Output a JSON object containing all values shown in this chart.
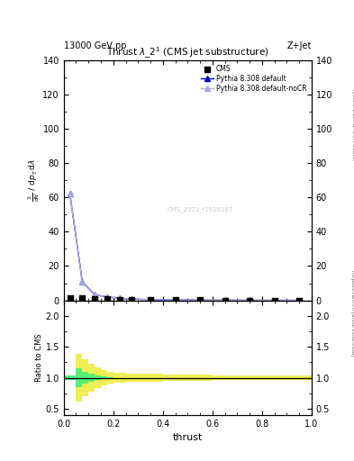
{
  "title": "Thrust $\\lambda\\_2^1$ (CMS jet substructure)",
  "header_left": "13000 GeV pp",
  "header_right": "Z+Jet",
  "right_label_top": "Rivet 3.1.10, $\\geq$ 3.3M events",
  "right_label_bot": "mcplots.cern.ch [arXiv:1306.3436]",
  "watermark": "CMS_2021_I1920187",
  "xlabel": "thrust",
  "ylabel_main_line1": "mathrm d$^2$N",
  "ylabel_ratio": "Ratio to CMS",
  "ylim_main": [
    0,
    140
  ],
  "ylim_ratio": [
    0.4,
    2.25
  ],
  "yticks_main": [
    0,
    20,
    40,
    60,
    80,
    100,
    120,
    140
  ],
  "yticks_ratio": [
    0.5,
    1.0,
    1.5,
    2.0
  ],
  "xlim": [
    0,
    1.0
  ],
  "main_x": [
    0.025,
    0.075,
    0.125,
    0.175,
    0.225,
    0.275,
    0.35,
    0.45,
    0.55,
    0.65,
    0.75,
    0.85,
    0.95
  ],
  "cms_y": [
    1.5,
    1.2,
    0.9,
    0.6,
    0.4,
    0.25,
    0.18,
    0.12,
    0.09,
    0.06,
    0.04,
    0.025,
    0.015
  ],
  "pythia_default_y": [
    62.0,
    10.8,
    3.3,
    2.0,
    1.2,
    0.75,
    0.42,
    0.26,
    0.16,
    0.11,
    0.075,
    0.045,
    0.022
  ],
  "pythia_nocr_y": [
    62.0,
    10.8,
    3.3,
    2.0,
    1.2,
    0.75,
    0.42,
    0.26,
    0.16,
    0.11,
    0.075,
    0.045,
    0.022
  ],
  "ratio_edges": [
    0.0,
    0.05,
    0.075,
    0.1,
    0.125,
    0.15,
    0.175,
    0.2,
    0.25,
    0.3,
    0.4,
    0.6,
    0.8,
    1.0
  ],
  "ratio_green_lo": [
    0.97,
    0.85,
    0.9,
    0.93,
    0.96,
    0.98,
    0.99,
    1.0,
    1.0,
    1.01,
    1.02,
    1.03,
    1.03
  ],
  "ratio_green_hi": [
    1.03,
    1.15,
    1.1,
    1.07,
    1.04,
    1.02,
    1.01,
    1.0,
    1.0,
    1.01,
    1.02,
    1.03,
    1.04
  ],
  "ratio_yellow_lo": [
    0.97,
    0.62,
    0.7,
    0.78,
    0.83,
    0.87,
    0.9,
    0.92,
    0.93,
    0.94,
    0.95,
    0.96,
    0.97
  ],
  "ratio_yellow_hi": [
    1.03,
    1.38,
    1.3,
    1.22,
    1.17,
    1.13,
    1.1,
    1.08,
    1.07,
    1.06,
    1.05,
    1.04,
    1.03
  ],
  "color_cms": "#000000",
  "color_pythia_default": "#0000cc",
  "color_pythia_nocr": "#aaaadd",
  "color_green": "#55ee77",
  "color_yellow": "#eeee55",
  "legend_entries": [
    "CMS",
    "Pythia 8.308 default",
    "Pythia 8.308 default-noCR"
  ]
}
